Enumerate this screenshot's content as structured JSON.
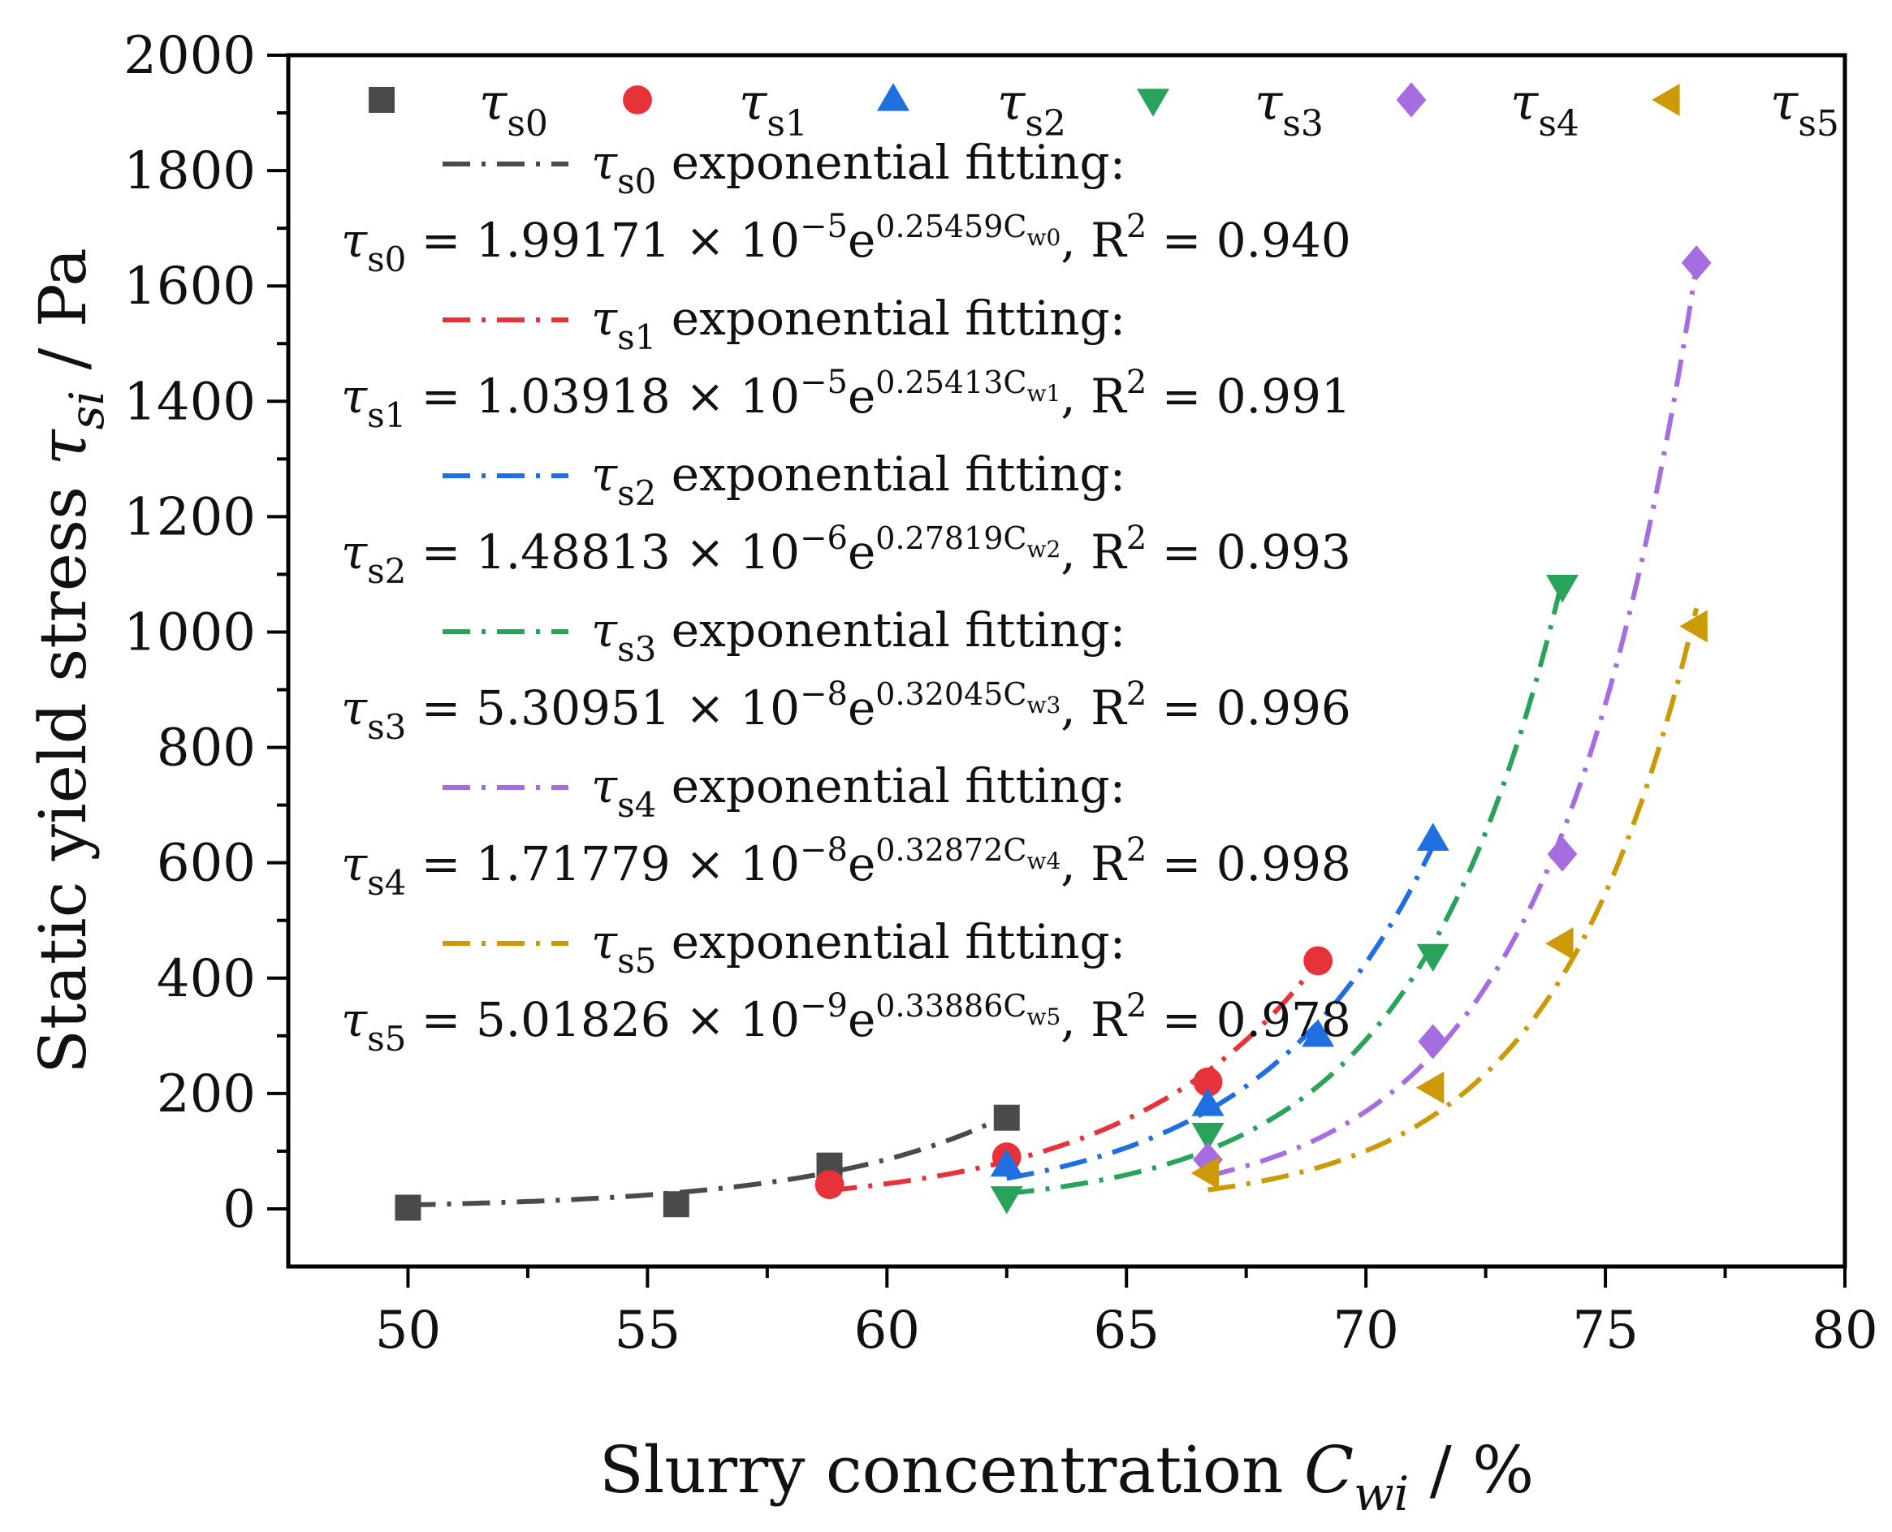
{
  "chart_data": {
    "type": "scatter",
    "title": "",
    "xlabel": {
      "main": "Slurry concentration ",
      "symbol": "C",
      "subscript": "wi",
      "unit": " / %"
    },
    "ylabel": {
      "main": "Static yield stress ",
      "symbol": "τ",
      "subscript": "si",
      "unit": " / Pa"
    },
    "xlim": [
      47.5,
      80
    ],
    "ylim": [
      -100,
      2000
    ],
    "xticks": [
      50,
      55,
      60,
      65,
      70,
      75,
      80
    ],
    "yticks": [
      0,
      200,
      400,
      600,
      800,
      1000,
      1200,
      1400,
      1600,
      1800,
      2000
    ],
    "legend_position": "top",
    "series": [
      {
        "name": "τs0",
        "symbol": "τ",
        "sub": "s0",
        "marker": "square",
        "color": "#4a4a4a",
        "x": [
          50.0,
          55.6,
          58.8,
          62.5
        ],
        "y": [
          2,
          8,
          75,
          158
        ],
        "fit": {
          "a": 1.99171e-05,
          "b": 0.25459,
          "x0": 50.0,
          "x1": 62.5
        },
        "fit_title": " exponential fitting:",
        "equation": {
          "lhs_sym": "τ",
          "lhs_sub": "s0",
          "coef": " = 1.99171 × 10",
          "exp": "−5",
          "e": "e",
          "pow": "0.25459C",
          "pow_sub": "w0",
          "r2": ", R",
          "r2_sup": "2",
          "r2_val": " = 0.940"
        }
      },
      {
        "name": "τs1",
        "symbol": "τ",
        "sub": "s1",
        "marker": "circle",
        "color": "#e8323a",
        "x": [
          58.8,
          62.5,
          66.7,
          69.0
        ],
        "y": [
          42,
          90,
          220,
          430
        ],
        "fit": {
          "a": 1.03918e-05,
          "b": 0.25413,
          "x0": 58.8,
          "x1": 69.0
        },
        "fit_title": " exponential fitting:",
        "equation": {
          "lhs_sym": "τ",
          "lhs_sub": "s1",
          "coef": " = 1.03918 × 10",
          "exp": "−5",
          "e": "e",
          "pow": "0.25413C",
          "pow_sub": "w1",
          "r2": ", R",
          "r2_sup": "2",
          "r2_val": " = 0.991"
        }
      },
      {
        "name": "τs2",
        "symbol": "τ",
        "sub": "s2",
        "marker": "triangle-up",
        "color": "#1f6fe0",
        "x": [
          62.5,
          66.7,
          69.0,
          71.4
        ],
        "y": [
          75,
          180,
          300,
          640
        ],
        "fit": {
          "a": 1.48813e-06,
          "b": 0.27819,
          "x0": 62.5,
          "x1": 71.4
        },
        "fit_title": " exponential fitting:",
        "equation": {
          "lhs_sym": "τ",
          "lhs_sub": "s2",
          "coef": " = 1.48813 × 10",
          "exp": "−6",
          "e": "e",
          "pow": "0.27819C",
          "pow_sub": "w2",
          "r2": ", R",
          "r2_sup": "2",
          "r2_val": " = 0.993"
        }
      },
      {
        "name": "τs3",
        "symbol": "τ",
        "sub": "s3",
        "marker": "triangle-down",
        "color": "#2aa35a",
        "x": [
          62.5,
          66.7,
          71.4,
          74.1
        ],
        "y": [
          20,
          130,
          440,
          1080
        ],
        "fit": {
          "a": 5.30951e-08,
          "b": 0.32045,
          "x0": 62.5,
          "x1": 74.1
        },
        "fit_title": " exponential fitting:",
        "equation": {
          "lhs_sym": "τ",
          "lhs_sub": "s3",
          "coef": " = 5.30951 × 10",
          "exp": "−8",
          "e": "e",
          "pow": "0.32045C",
          "pow_sub": "w3",
          "r2": ", R",
          "r2_sup": "2",
          "r2_val": " = 0.996"
        }
      },
      {
        "name": "τs4",
        "symbol": "τ",
        "sub": "s4",
        "marker": "diamond",
        "color": "#a66de0",
        "x": [
          66.7,
          71.4,
          74.1,
          76.9
        ],
        "y": [
          85,
          290,
          615,
          1640
        ],
        "fit": {
          "a": 1.71779e-08,
          "b": 0.32872,
          "x0": 66.7,
          "x1": 76.9
        },
        "fit_title": " exponential fitting:",
        "equation": {
          "lhs_sym": "τ",
          "lhs_sub": "s4",
          "coef": " = 1.71779 × 10",
          "exp": "−8",
          "e": "e",
          "pow": "0.32872C",
          "pow_sub": "w4",
          "r2": ", R",
          "r2_sup": "2",
          "r2_val": " = 0.998"
        }
      },
      {
        "name": "τs5",
        "symbol": "τ",
        "sub": "s5",
        "marker": "triangle-left",
        "color": "#cc9a06",
        "x": [
          66.7,
          71.4,
          74.1,
          76.9
        ],
        "y": [
          62,
          210,
          460,
          1010
        ],
        "fit": {
          "a": 5.01826e-09,
          "b": 0.33886,
          "x0": 66.7,
          "x1": 76.9
        },
        "fit_title": " exponential fitting:",
        "equation": {
          "lhs_sym": "τ",
          "lhs_sub": "s5",
          "coef": " = 5.01826 × 10",
          "exp": "−9",
          "e": "e",
          "pow": "0.33886C",
          "pow_sub": "w5",
          "r2": ", R",
          "r2_sup": "2",
          "r2_val": " = 0.978"
        }
      }
    ]
  }
}
